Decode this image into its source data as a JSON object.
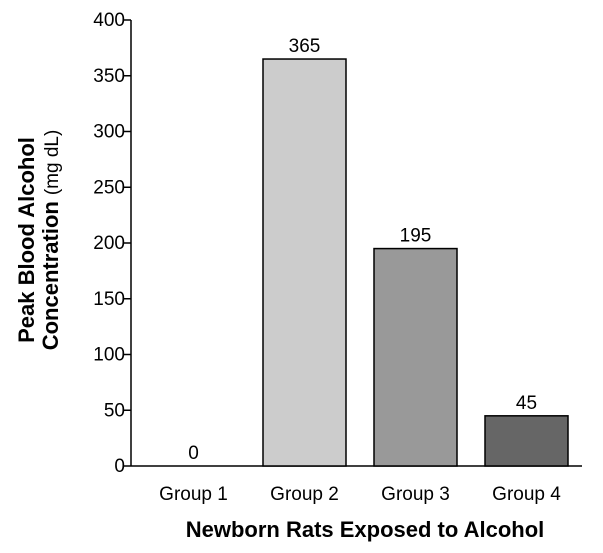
{
  "chart_data": {
    "type": "bar",
    "categories": [
      "Group 1",
      "Group 2",
      "Group 3",
      "Group 4"
    ],
    "values": [
      0,
      365,
      195,
      45
    ],
    "data_labels": [
      "0",
      "365",
      "195",
      "45"
    ],
    "bar_colors": [
      "#d0d0d0",
      "#cccccc",
      "#999999",
      "#666666"
    ],
    "xlabel": "Newborn Rats Exposed to Alcohol",
    "ylabel_line1": "Peak Blood Alcohol",
    "ylabel_line2": "Concentration",
    "ylabel_unit": "(mg dL)",
    "ylim": [
      0,
      400
    ],
    "yticks": [
      0,
      50,
      100,
      150,
      200,
      250,
      300,
      350,
      400
    ],
    "grid": false,
    "legend": "none"
  }
}
